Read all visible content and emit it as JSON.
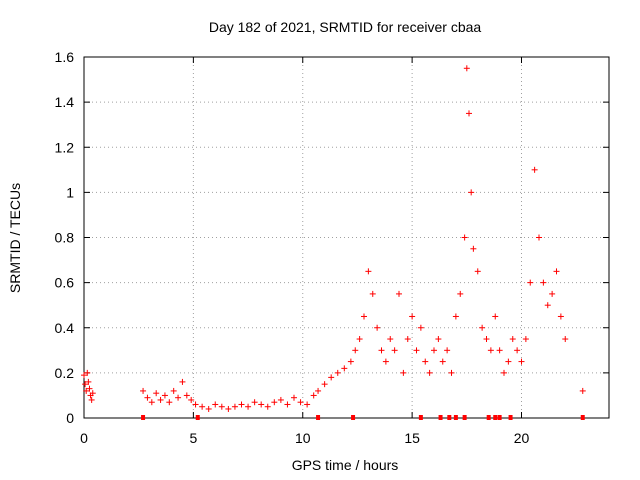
{
  "chart_data": {
    "type": "scatter",
    "title": "Day 182 of 2021, SRMTID for receiver cbaa",
    "xlabel": "GPS time / hours",
    "ylabel": "SRMTID / TECUs",
    "xlim": [
      0,
      24
    ],
    "ylim": [
      0,
      1.6
    ],
    "x_ticks": [
      0,
      5,
      10,
      15,
      20
    ],
    "x_tick_labels": [
      "0",
      "5",
      "10",
      "15",
      "20"
    ],
    "y_ticks": [
      0,
      0.2,
      0.4,
      0.6,
      0.8,
      1.0,
      1.2,
      1.4,
      1.6
    ],
    "y_tick_labels": [
      "0",
      "0.2",
      "0.4",
      "0.6",
      "0.8",
      "1",
      "1.2",
      "1.4",
      "1.6"
    ],
    "grid": true,
    "marker": "+",
    "color": "#ff0000",
    "series": [
      {
        "name": "SRMTID",
        "x": [
          0.0,
          0.05,
          0.1,
          0.15,
          0.2,
          0.25,
          0.3,
          0.35,
          0.4,
          2.7,
          2.9,
          3.1,
          3.3,
          3.5,
          3.7,
          3.9,
          4.1,
          4.3,
          4.5,
          4.7,
          4.9,
          5.1,
          5.4,
          5.7,
          6.0,
          6.3,
          6.6,
          6.9,
          7.2,
          7.5,
          7.8,
          8.1,
          8.4,
          8.7,
          9.0,
          9.3,
          9.6,
          9.9,
          10.2,
          10.5,
          10.7,
          11.0,
          11.3,
          11.6,
          11.9,
          12.2,
          12.4,
          12.6,
          12.8,
          13.0,
          13.2,
          13.4,
          13.6,
          13.8,
          14.0,
          14.2,
          14.4,
          14.6,
          14.8,
          15.0,
          15.2,
          15.4,
          15.6,
          15.8,
          16.0,
          16.2,
          16.4,
          16.6,
          16.8,
          17.0,
          17.2,
          17.4,
          17.5,
          17.6,
          17.7,
          17.8,
          18.0,
          18.2,
          18.4,
          18.6,
          18.8,
          19.0,
          19.2,
          19.4,
          19.6,
          19.8,
          20.0,
          20.2,
          20.4,
          20.6,
          20.8,
          21.0,
          21.2,
          21.4,
          21.6,
          21.8,
          22.0,
          22.8
        ],
        "y": [
          0.19,
          0.15,
          0.12,
          0.2,
          0.16,
          0.13,
          0.1,
          0.08,
          0.11,
          0.12,
          0.09,
          0.07,
          0.11,
          0.08,
          0.1,
          0.07,
          0.12,
          0.09,
          0.16,
          0.1,
          0.08,
          0.06,
          0.05,
          0.04,
          0.06,
          0.05,
          0.04,
          0.05,
          0.06,
          0.05,
          0.07,
          0.06,
          0.05,
          0.07,
          0.08,
          0.06,
          0.09,
          0.07,
          0.06,
          0.1,
          0.12,
          0.15,
          0.18,
          0.2,
          0.22,
          0.25,
          0.3,
          0.35,
          0.45,
          0.65,
          0.55,
          0.4,
          0.3,
          0.25,
          0.35,
          0.3,
          0.55,
          0.2,
          0.35,
          0.45,
          0.3,
          0.4,
          0.25,
          0.2,
          0.3,
          0.35,
          0.25,
          0.3,
          0.2,
          0.45,
          0.55,
          0.8,
          1.55,
          1.35,
          1.0,
          0.75,
          0.65,
          0.4,
          0.35,
          0.3,
          0.45,
          0.3,
          0.2,
          0.25,
          0.35,
          0.3,
          0.25,
          0.35,
          0.6,
          1.1,
          0.8,
          0.6,
          0.5,
          0.55,
          0.65,
          0.45,
          0.35,
          0.12
        ],
        "gap_markers_x": [
          2.7,
          5.2,
          10.7,
          12.3,
          15.4,
          16.3,
          16.7,
          17.0,
          17.4,
          18.5,
          18.8,
          19.0,
          19.5,
          22.8
        ]
      }
    ]
  }
}
